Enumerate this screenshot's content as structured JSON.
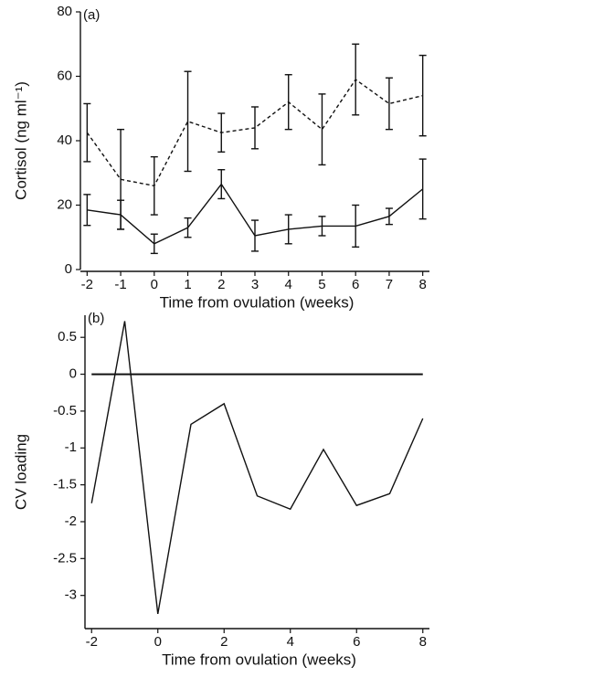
{
  "chart_data": [
    {
      "type": "line",
      "annotation": "(a)",
      "x_label": "Time from ovulation (weeks)",
      "y_label": "Cortisol (ng ml⁻¹)",
      "x": [
        -2,
        -1,
        0,
        1,
        2,
        3,
        4,
        5,
        6,
        7,
        8
      ],
      "series": [
        {
          "color": "#111111",
          "style": "dashed",
          "values": [
            42.5,
            28,
            26,
            46,
            42.5,
            44,
            52,
            43.5,
            59,
            51.5,
            54
          ],
          "errors": [
            9,
            15.5,
            9,
            15.5,
            6,
            6.5,
            8.5,
            11,
            11,
            8,
            12.5
          ]
        },
        {
          "color": "#111111",
          "style": "solid",
          "values": [
            18.5,
            17,
            8,
            13,
            26.5,
            10.5,
            12.5,
            13.5,
            13.5,
            16.5,
            25
          ],
          "errors": [
            4.8,
            4.5,
            3,
            3,
            4.5,
            4.8,
            4.5,
            3,
            6.5,
            2.5,
            9.3
          ]
        }
      ],
      "xlim": [
        -2.2,
        8.2
      ],
      "xticks": [
        -2,
        -1,
        0,
        1,
        2,
        3,
        4,
        5,
        6,
        7,
        8
      ],
      "ylim": [
        0,
        80
      ],
      "yticks": [
        0,
        20,
        40,
        60,
        80
      ]
    },
    {
      "type": "line",
      "annotation": "(b)",
      "x_label": "Time from ovulation (weeks)",
      "y_label": "CV loading",
      "x": [
        -2,
        -1,
        0,
        1,
        2,
        3,
        4,
        5,
        6,
        7,
        8
      ],
      "series": [
        {
          "color": "#111111",
          "style": "solid",
          "values": [
            -1.75,
            0.72,
            -3.25,
            -0.68,
            -0.4,
            -1.65,
            -1.83,
            -1.02,
            -1.78,
            -1.62,
            -0.6
          ]
        }
      ],
      "reference_line": 0,
      "xlim": [
        -2.2,
        8.2
      ],
      "xticks": [
        -2,
        0,
        2,
        4,
        6,
        8
      ],
      "ylim": [
        -3.45,
        0.8
      ],
      "yticks": [
        0.5,
        0,
        -0.5,
        -1,
        -1.5,
        -2,
        -2.5,
        -3
      ]
    }
  ]
}
